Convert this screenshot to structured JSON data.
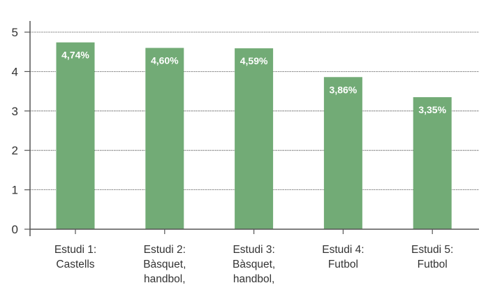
{
  "chart_data": {
    "type": "bar",
    "title": "",
    "xlabel": "",
    "ylabel": "",
    "ylim": [
      0,
      5
    ],
    "yticks": [
      "0",
      "1",
      "2",
      "3",
      "4",
      "5"
    ],
    "grid": true,
    "categories": [
      [
        "Estudi 1:",
        "Castells"
      ],
      [
        "Estudi 2:",
        "Bàsquet,",
        "handbol,"
      ],
      [
        "Estudi 3:",
        "Bàsquet,",
        "handbol,"
      ],
      [
        "Estudi 4:",
        "Futbol"
      ],
      [
        "Estudi 5:",
        "Futbol"
      ]
    ],
    "values": [
      4.74,
      4.6,
      4.59,
      3.86,
      3.35
    ],
    "data_labels": [
      "4,74%",
      "4,60%",
      "4,59%",
      "3,86%",
      "3,35%"
    ],
    "colors": {
      "bar": "#72ab76",
      "label": "#ffffff",
      "axis": "#555555",
      "grid": "#444444",
      "text": "#333333"
    }
  }
}
